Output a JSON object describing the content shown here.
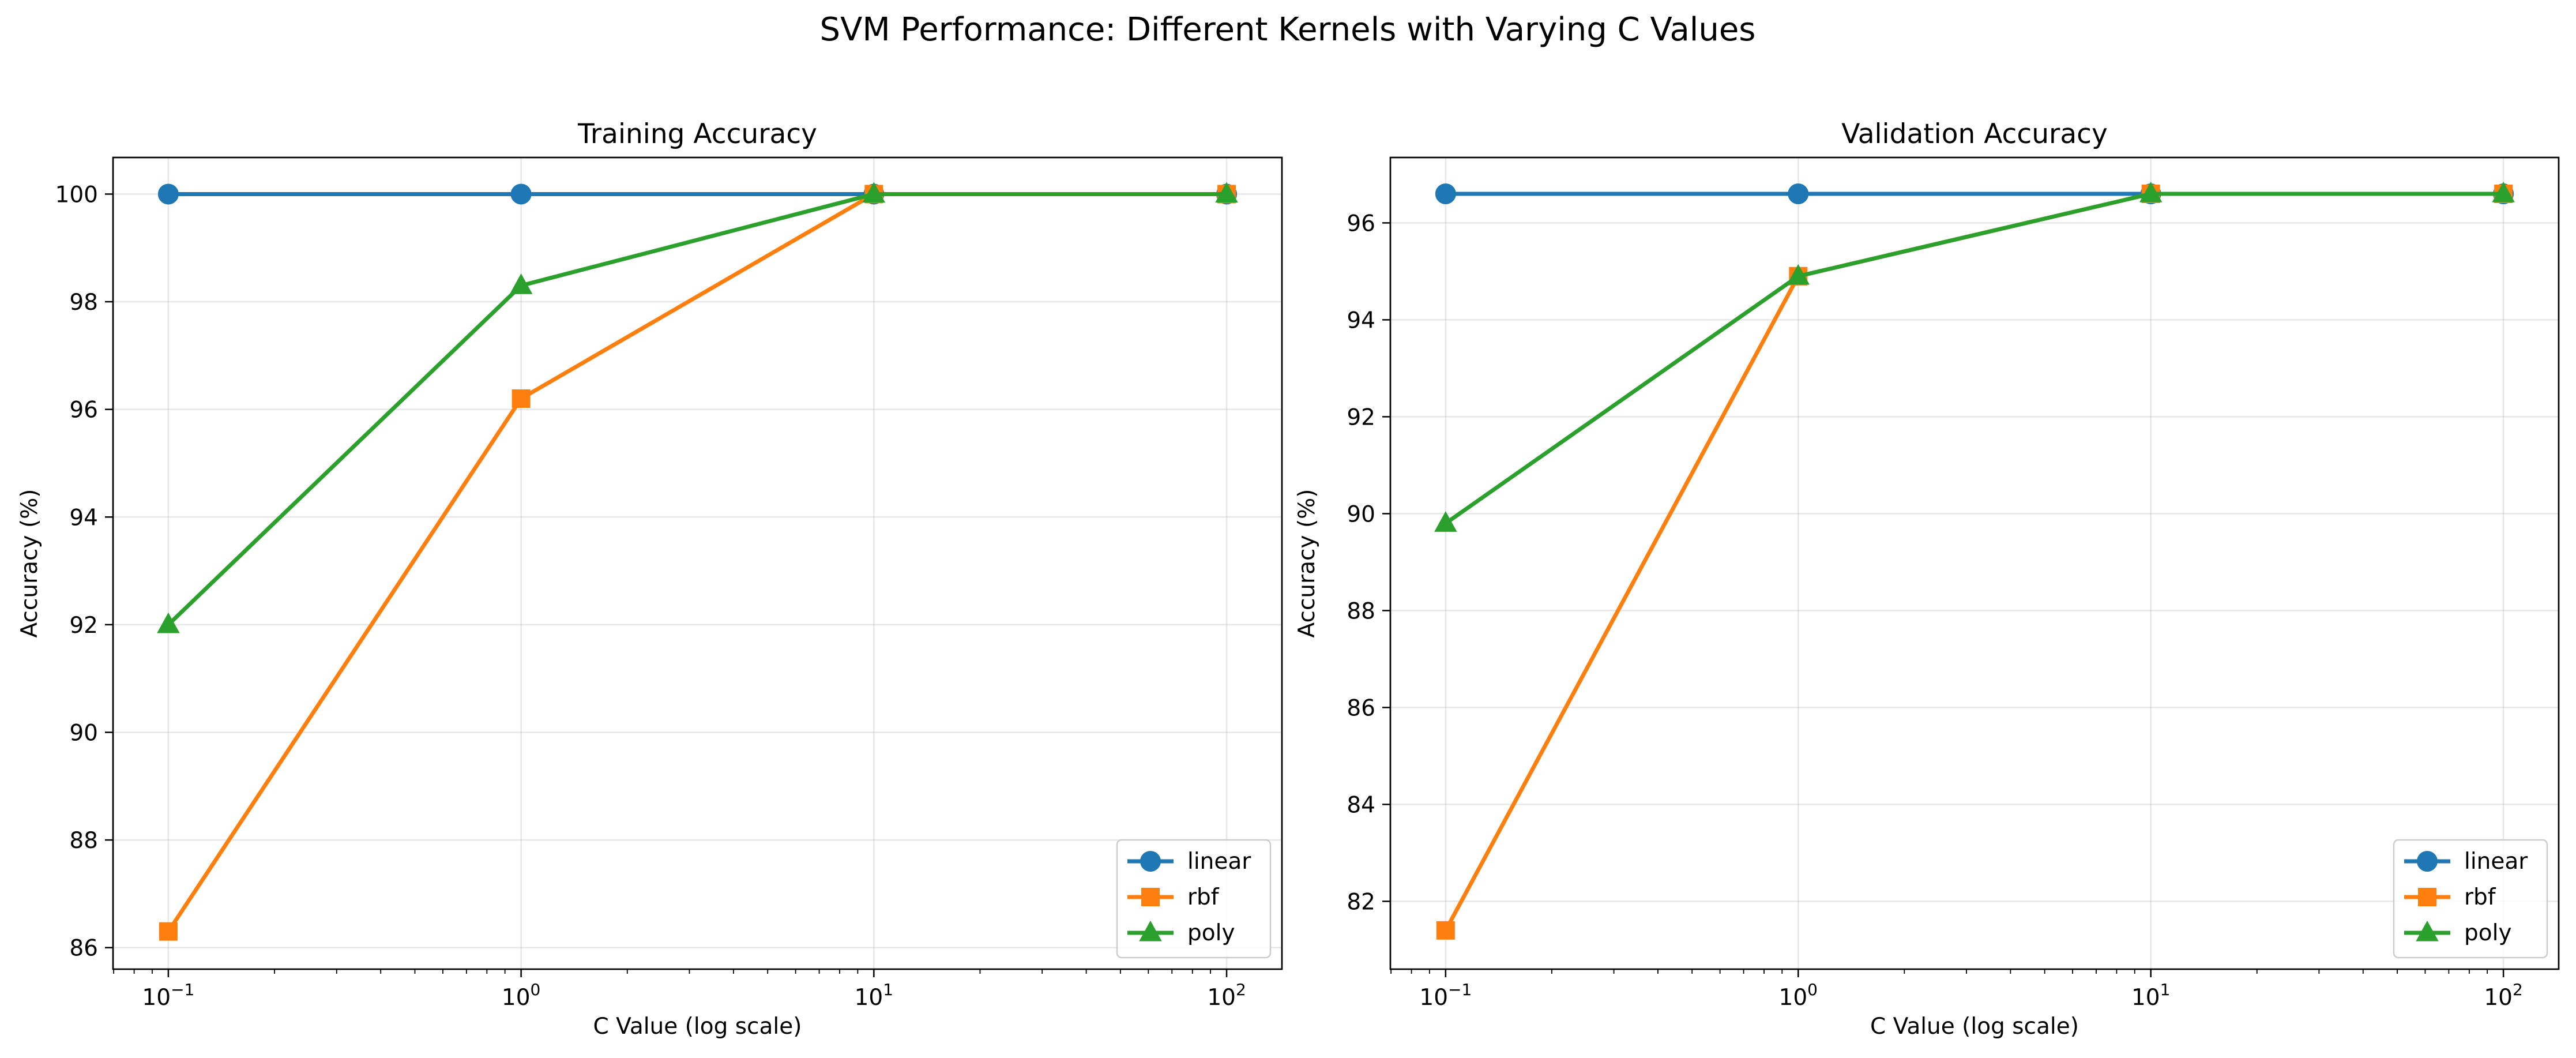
{
  "figure": {
    "title": "SVM Performance: Different Kernels with Varying C Values"
  },
  "chart_data": [
    {
      "type": "line",
      "title": "Training Accuracy",
      "xlabel": "C Value (log scale)",
      "ylabel": "Accuracy (%)",
      "xscale": "log",
      "xlim": [
        0.0697,
        143.5
      ],
      "ylim": [
        85.6,
        100.68
      ],
      "x": [
        0.1,
        1,
        10,
        100
      ],
      "xtick_labels": [
        {
          "base": "10",
          "exp": "−1"
        },
        {
          "base": "10",
          "exp": "0"
        },
        {
          "base": "10",
          "exp": "1"
        },
        {
          "base": "10",
          "exp": "2"
        }
      ],
      "yticks": [
        86,
        88,
        90,
        92,
        94,
        96,
        98,
        100
      ],
      "grid": true,
      "legend_position": "lower right",
      "series": [
        {
          "name": "linear",
          "color": "#1f77b4",
          "marker": "circle",
          "values": [
            100.0,
            100.0,
            100.0,
            100.0
          ]
        },
        {
          "name": "rbf",
          "color": "#ff7f0e",
          "marker": "square",
          "values": [
            86.3,
            96.2,
            100.0,
            100.0
          ]
        },
        {
          "name": "poly",
          "color": "#2ca02c",
          "marker": "triangle",
          "values": [
            92.0,
            98.3,
            100.0,
            100.0
          ]
        }
      ]
    },
    {
      "type": "line",
      "title": "Validation Accuracy",
      "xlabel": "C Value (log scale)",
      "ylabel": "Accuracy (%)",
      "xscale": "log",
      "xlim": [
        0.0697,
        143.5
      ],
      "ylim": [
        80.6,
        97.35
      ],
      "x": [
        0.1,
        1,
        10,
        100
      ],
      "xtick_labels": [
        {
          "base": "10",
          "exp": "−1"
        },
        {
          "base": "10",
          "exp": "0"
        },
        {
          "base": "10",
          "exp": "1"
        },
        {
          "base": "10",
          "exp": "2"
        }
      ],
      "yticks": [
        82,
        84,
        86,
        88,
        90,
        92,
        94,
        96
      ],
      "grid": true,
      "legend_position": "lower right",
      "series": [
        {
          "name": "linear",
          "color": "#1f77b4",
          "marker": "circle",
          "values": [
            96.6,
            96.6,
            96.6,
            96.6
          ]
        },
        {
          "name": "rbf",
          "color": "#ff7f0e",
          "marker": "square",
          "values": [
            81.4,
            94.9,
            96.6,
            96.6
          ]
        },
        {
          "name": "poly",
          "color": "#2ca02c",
          "marker": "triangle",
          "values": [
            89.8,
            94.9,
            96.6,
            96.6
          ]
        }
      ]
    }
  ]
}
